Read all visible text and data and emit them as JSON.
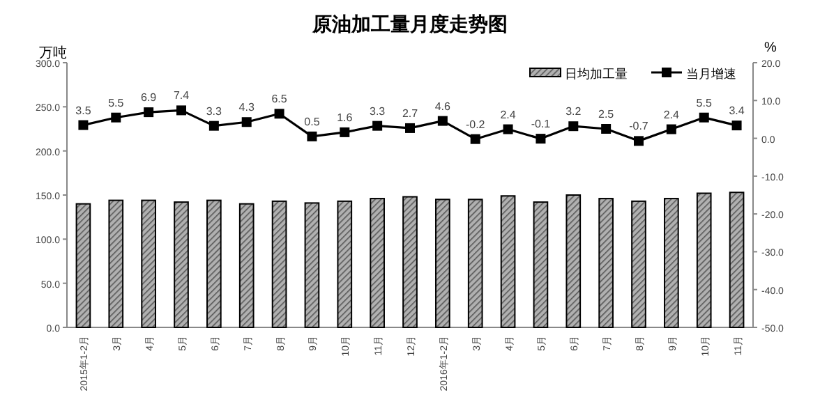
{
  "chart_data": {
    "type": "bar",
    "title": "原油加工量月度走势图",
    "ylabel": "万吨",
    "y2label": "%",
    "categories": [
      "2015年1-2月",
      "3月",
      "4月",
      "5月",
      "6月",
      "7月",
      "8月",
      "9月",
      "10月",
      "11月",
      "12月",
      "2016年1-2月",
      "3月",
      "4月",
      "5月",
      "6月",
      "7月",
      "8月",
      "9月",
      "10月",
      "11月"
    ],
    "series": [
      {
        "name": "日均加工量",
        "color": "#b0b0b0",
        "values": [
          140,
          144,
          144,
          142,
          144,
          140,
          143,
          141,
          143,
          146,
          148,
          145,
          145,
          149,
          142,
          150,
          146,
          143,
          146,
          152,
          153
        ]
      },
      {
        "name": "当月增速",
        "type": "line",
        "axis": "y2",
        "color": "#000000",
        "marker": "square",
        "data_labels": true,
        "values": [
          3.5,
          5.5,
          6.9,
          7.4,
          3.3,
          4.3,
          6.5,
          0.5,
          1.6,
          3.3,
          2.7,
          4.6,
          -0.2,
          2.4,
          -0.1,
          3.2,
          2.5,
          -0.7,
          2.4,
          5.5,
          3.4
        ]
      }
    ],
    "ylim": [
      0,
      300
    ],
    "yticks": [
      {
        "value": 0,
        "label": "0.0"
      },
      {
        "value": 50,
        "label": "50.0"
      },
      {
        "value": 100,
        "label": "100.0"
      },
      {
        "value": 150,
        "label": "150.0"
      },
      {
        "value": 200,
        "label": "200.0"
      },
      {
        "value": 250,
        "label": "250.0"
      },
      {
        "value": 300,
        "label": "300.0"
      }
    ],
    "y2lim": [
      -50,
      20
    ],
    "y2ticks": [
      {
        "value": -50,
        "label": "-50.0"
      },
      {
        "value": -40,
        "label": "-40.0"
      },
      {
        "value": -30,
        "label": "-30.0"
      },
      {
        "value": -20,
        "label": "-20.0"
      },
      {
        "value": -10,
        "label": "-10.0"
      },
      {
        "value": 0,
        "label": "0.0"
      },
      {
        "value": 10,
        "label": "10.0"
      },
      {
        "value": 20,
        "label": "20.0"
      }
    ],
    "legend": "top right",
    "grid": false
  }
}
